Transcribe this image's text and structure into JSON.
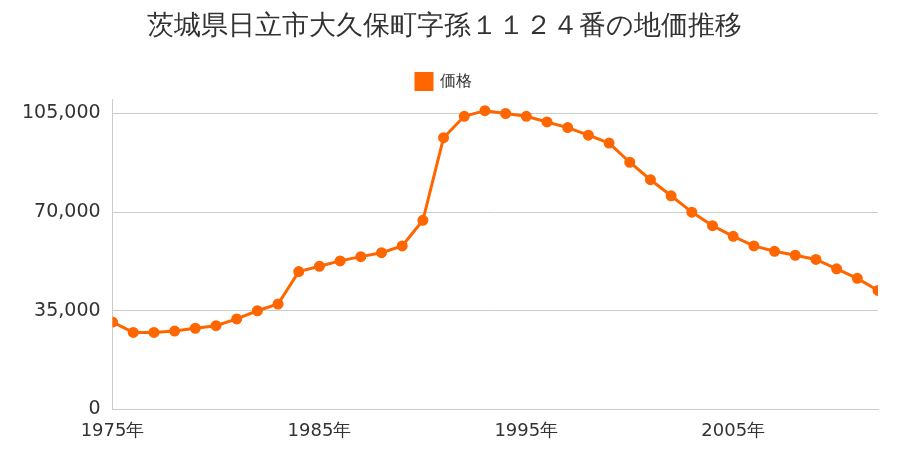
{
  "chart_data": {
    "type": "line",
    "title": "茨城県日立市大久保町字孫１１２４番の地価推移",
    "x": [
      1975,
      1976,
      1977,
      1978,
      1979,
      1980,
      1981,
      1982,
      1983,
      1984,
      1985,
      1986,
      1987,
      1988,
      1989,
      1990,
      1991,
      1992,
      1993,
      1994,
      1995,
      1996,
      1997,
      1998,
      1999,
      2000,
      2001,
      2002,
      2003,
      2004,
      2005,
      2006,
      2007,
      2008,
      2009,
      2010,
      2011,
      2012
    ],
    "series": [
      {
        "name": "価格",
        "color": "#ff6600",
        "marker": "circle",
        "values": [
          31000,
          27300,
          27300,
          27800,
          28800,
          29700,
          32100,
          35000,
          37400,
          48900,
          50800,
          52700,
          54200,
          55600,
          58000,
          67100,
          96400,
          104000,
          106000,
          105000,
          104000,
          102000,
          100000,
          97300,
          94500,
          87700,
          81500,
          75800,
          70000,
          65200,
          61400,
          58000,
          56100,
          54700,
          53200,
          49900,
          46500,
          42200
        ]
      }
    ],
    "xlim": [
      1975,
      2012
    ],
    "xticks": [
      {
        "value": 1975,
        "label": "1975年"
      },
      {
        "value": 1985,
        "label": "1985年"
      },
      {
        "value": 1995,
        "label": "1995年"
      },
      {
        "value": 2005,
        "label": "2005年"
      }
    ],
    "ylim": [
      0,
      110000
    ],
    "yticks": [
      0,
      {
        "value": 35000,
        "label": "35,000"
      },
      {
        "value": 70000,
        "label": "70,000"
      },
      {
        "value": 105000,
        "label": "105,000"
      }
    ],
    "grid": true,
    "legend": "top"
  }
}
